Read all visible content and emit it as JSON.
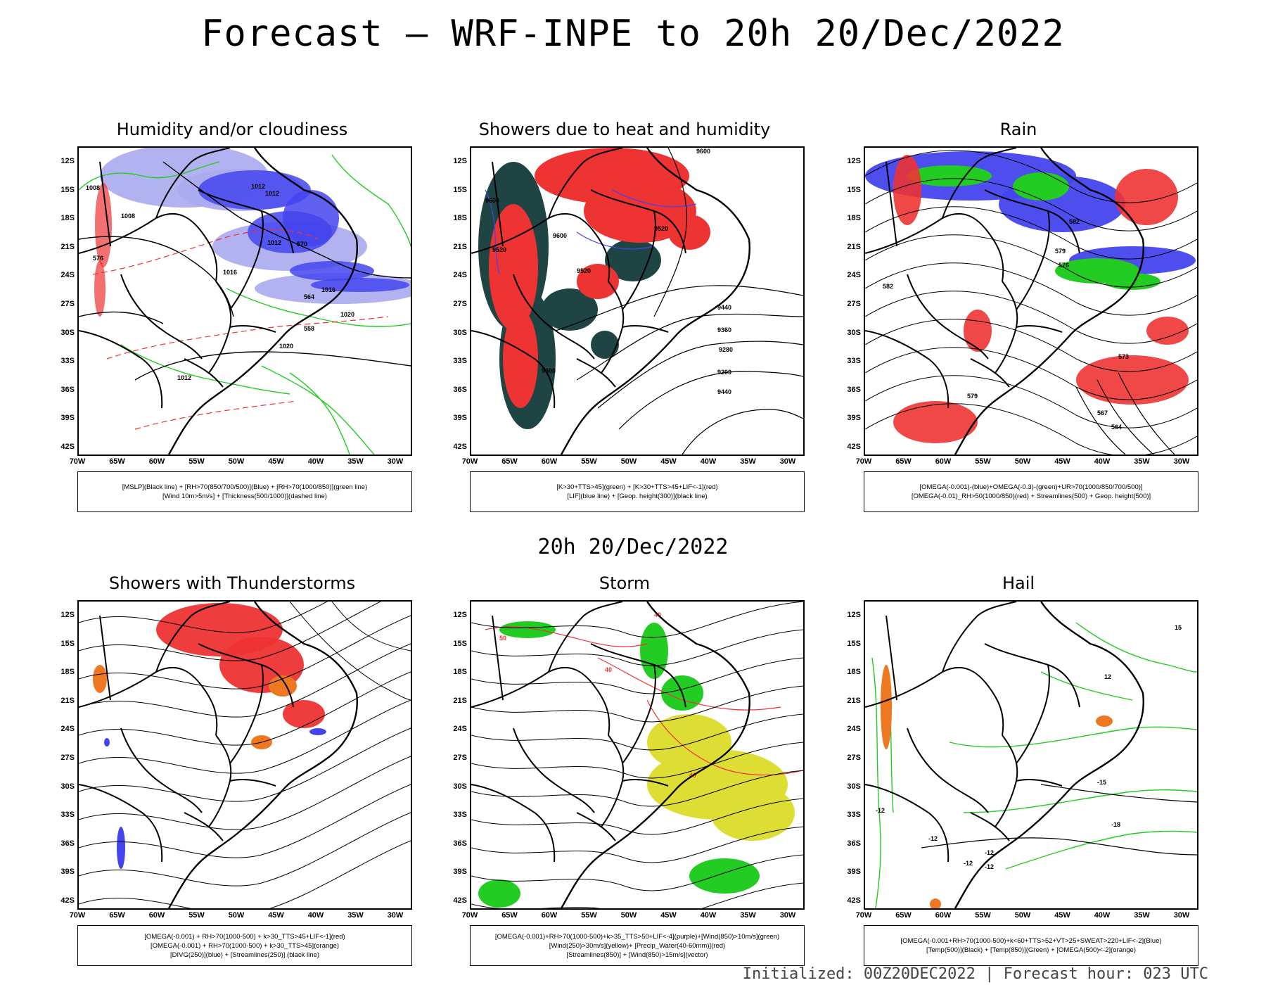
{
  "title": "Forecast — WRF-INPE to 20h 20/Dec/2022",
  "middle_title": "20h 20/Dec/2022",
  "footer": "Initialized: 00Z20DEC2022 | Forecast hour: 023 UTC",
  "lat_labels": [
    "12S",
    "15S",
    "18S",
    "21S",
    "24S",
    "27S",
    "30S",
    "33S",
    "36S",
    "39S",
    "42S"
  ],
  "lon_labels": [
    "70W",
    "65W",
    "60W",
    "55W",
    "50W",
    "45W",
    "40W",
    "35W",
    "30W"
  ],
  "colors": {
    "red": "#ee3333",
    "blue": "#4444ee",
    "green": "#22cc22",
    "dark": "#1f4444",
    "yellow": "#dddd33",
    "orange": "#ee7722",
    "lightblue": "#aaaaee"
  },
  "panels": [
    {
      "title": "Humidity and/or cloudiness",
      "legend": [
        "[MSLP](Black line) + [RH>70(850/700/500)](Blue) + [RH>70(1000/850)](green line)",
        "[Wind 10m>5m/s] + [Thickness(500/1000)](dashed line)"
      ],
      "contour_labels": [
        "1008",
        "1012",
        "1012",
        "1012",
        "1016",
        "1016",
        "1020",
        "1020",
        "1008",
        "1012",
        "570",
        "576",
        "564",
        "558"
      ]
    },
    {
      "title": "Showers due to heat and humidity",
      "legend": [
        "[K>30+TTS>45](green) + [K>30+TTS>45+LIF<-1](red)",
        "[LIF](blue line) + [Geop. height(300)](black line)"
      ],
      "contour_labels": [
        "9600",
        "9600",
        "9520",
        "9600",
        "9520",
        "9520",
        "9440",
        "9360",
        "9280",
        "9200",
        "9440",
        "9600"
      ]
    },
    {
      "title": "Rain",
      "legend": [
        "[OMEGA(-0.001)-(blue)+OMEGA(-0.3)-(green)+UR>70(1000/850/700/500)]",
        "[OMEGA(-0.01)_RH>50(1000/850)(red) + Streamlines(500) + Geop. height(500)]"
      ],
      "contour_labels": [
        "582",
        "579",
        "582",
        "576",
        "573",
        "579",
        "567",
        "564"
      ]
    },
    {
      "title": "Showers with Thunderstorms",
      "legend": [
        "[OMEGA(-0.001) + RH>70(1000-500) + k>30_TTS>45+LIF<-1](red)",
        "[OMEGA(-0.001) + RH>70(1000-500) + k>30_TTS>45](orange)",
        "[DIVG(250)](blue) + [Streamlines(250)] (black line)"
      ],
      "contour_labels": []
    },
    {
      "title": "Storm",
      "legend": [
        "[OMEGA(-0.001)+RH>70(1000-500)+k>35_TTS>50+LIF<-4](purple)+[Wind(850)>10m/s](green)",
        "[Wind(250)>30m/s](yellow)+ [Precip_Water(40-60mm)](red)",
        "[Streamlines(850)] + [Wind(850)>15m/s](vector)"
      ],
      "contour_labels": [
        "50",
        "40",
        "40",
        "40"
      ]
    },
    {
      "title": "Hail",
      "legend": [
        "[OMEGA(-0.001+RH>70(1000-500)+k<60+TTS>52+VT>25+SWEAT>220+LIF<-2](Blue)",
        "[Temp(500)](Black) + [Temp(850)](Green) + [OMEGA(500)<-2](orange)"
      ],
      "contour_labels": [
        "-12",
        "-12",
        "-12",
        "-15",
        "-18",
        "-12",
        "-12",
        "12",
        "15"
      ]
    }
  ]
}
